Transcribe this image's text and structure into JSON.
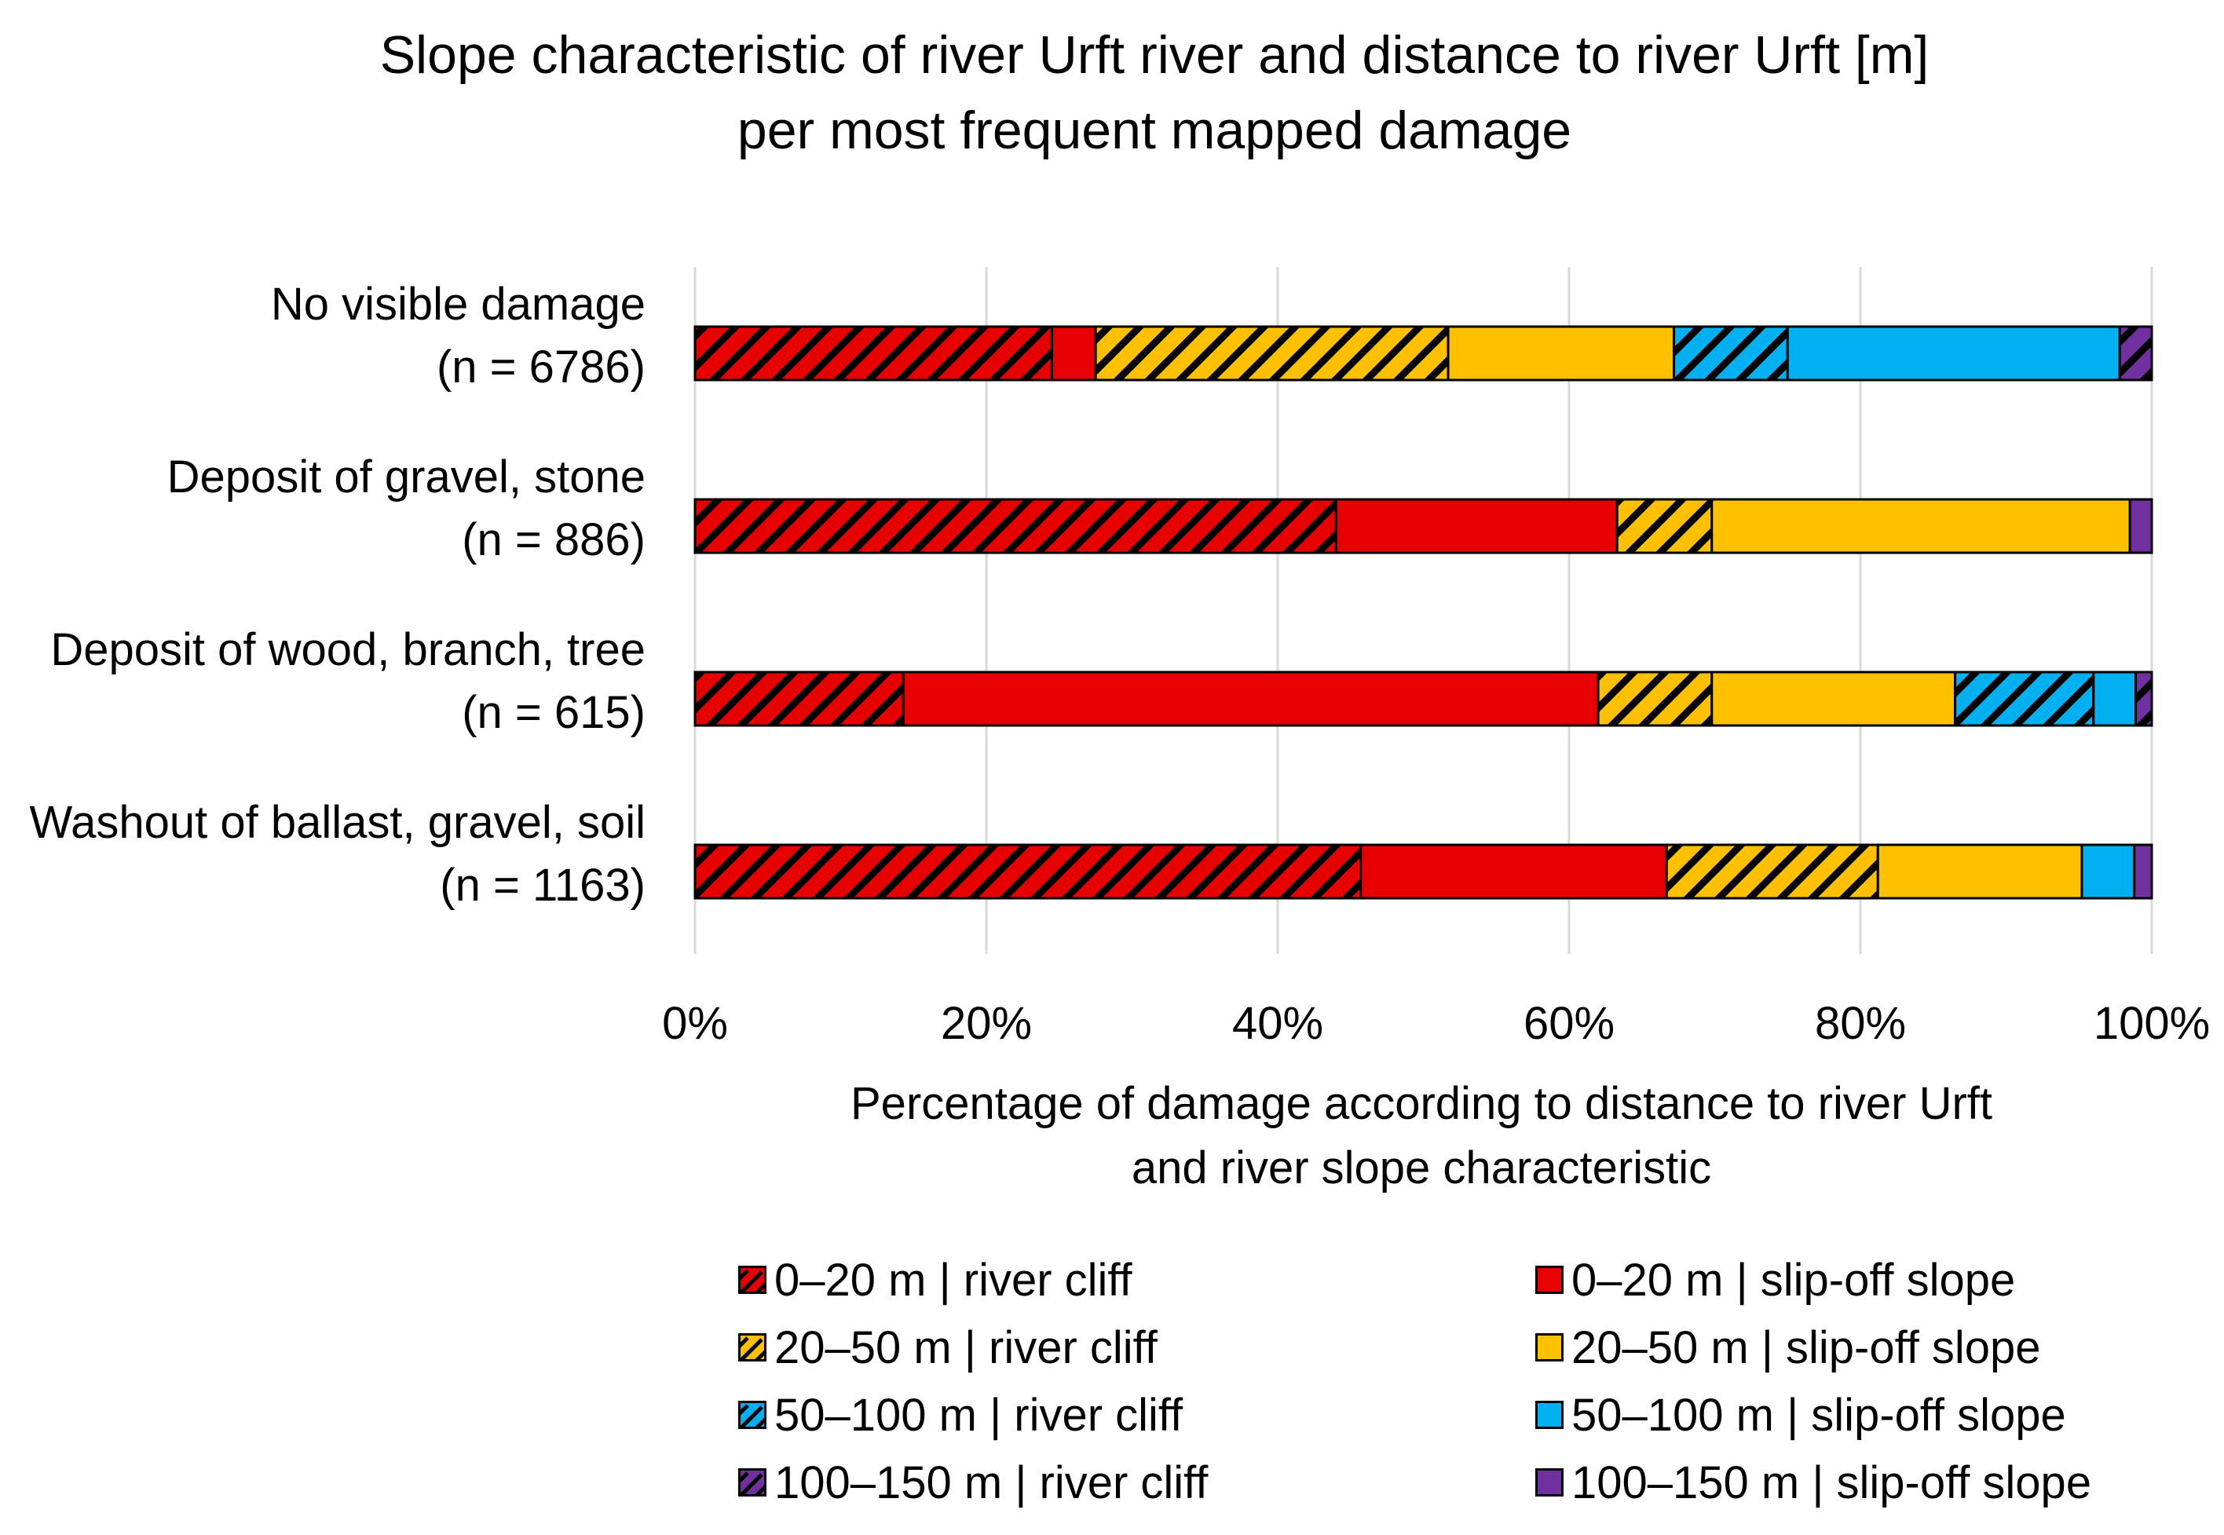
{
  "chart_data": {
    "type": "bar",
    "orientation": "horizontal",
    "stacked": "percent",
    "title_lines": [
      "Slope characteristic of river Urft river and distance to river Urft [m]",
      "per most frequent mapped damage"
    ],
    "xlabel_lines": [
      "Percentage of damage according to distance to river Urft",
      "and river slope characteristic"
    ],
    "xlim": [
      0,
      100
    ],
    "x_ticks": [
      "0%",
      "20%",
      "40%",
      "60%",
      "80%",
      "100%"
    ],
    "grid": true,
    "legend_position": "bottom",
    "categories": [
      [
        "No visible damage",
        "(n = 6786)"
      ],
      [
        "Deposit of gravel, stone",
        "(n = 886)"
      ],
      [
        "Deposit of wood, branch, tree",
        "(n = 615)"
      ],
      [
        "Washout of ballast, gravel, soil",
        "(n = 1163)"
      ]
    ],
    "series": [
      {
        "name": "0–20 m | river cliff",
        "color": "#e60000",
        "hatched": true,
        "values": [
          24.5,
          44.0,
          14.3,
          45.7
        ]
      },
      {
        "name": "0–20 m | slip-off slope",
        "color": "#e60000",
        "hatched": false,
        "values": [
          3.0,
          19.3,
          47.7,
          21.0
        ]
      },
      {
        "name": "20–50 m | river cliff",
        "color": "#ffc000",
        "hatched": true,
        "values": [
          24.2,
          6.5,
          7.8,
          14.5
        ]
      },
      {
        "name": "20–50 m | slip-off slope",
        "color": "#ffc000",
        "hatched": false,
        "values": [
          15.5,
          28.7,
          16.7,
          14.0
        ]
      },
      {
        "name": "50–100 m | river cliff",
        "color": "#00b0f0",
        "hatched": true,
        "values": [
          7.8,
          0,
          9.5,
          0
        ]
      },
      {
        "name": "50–100 m | slip-off slope",
        "color": "#00b0f0",
        "hatched": false,
        "values": [
          22.8,
          0,
          2.9,
          3.6
        ]
      },
      {
        "name": "100–150 m | river cliff",
        "color": "#7030a0",
        "hatched": true,
        "values": [
          2.2,
          0,
          1.1,
          0
        ]
      },
      {
        "name": "100–150 m | slip-off slope",
        "color": "#7030a0",
        "hatched": false,
        "values": [
          0,
          1.5,
          0,
          1.2
        ]
      }
    ]
  }
}
